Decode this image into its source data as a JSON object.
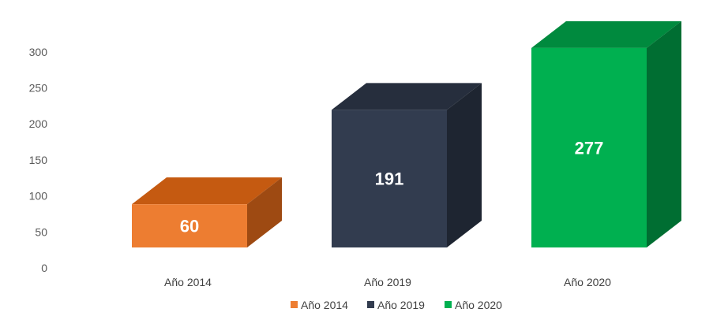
{
  "chart_data": {
    "type": "bar",
    "categories": [
      "Año 2014",
      "Año 2019",
      "Año 2020"
    ],
    "values": [
      60,
      191,
      277
    ],
    "data_labels": [
      "60",
      "191",
      "277"
    ],
    "y_ticks": [
      "0",
      "50",
      "100",
      "150",
      "200",
      "250",
      "300"
    ],
    "ylim": [
      0,
      300
    ],
    "grid": false,
    "style": "3d-column",
    "legend": {
      "placement": "bottom",
      "items": [
        {
          "label": "Año 2014",
          "color": "#ED7D31"
        },
        {
          "label": "Año 2019",
          "color": "#323C4F"
        },
        {
          "label": "Año 2020",
          "color": "#00B050"
        }
      ]
    },
    "colors": {
      "Año 2014": {
        "front": "#ED7D31",
        "top": "#C55A11",
        "side": "#9E4A12"
      },
      "Año 2019": {
        "front": "#323C4F",
        "top": "#262E3D",
        "side": "#1E2531"
      },
      "Año 2020": {
        "front": "#00B050",
        "top": "#008A3E",
        "side": "#006E32"
      }
    }
  }
}
